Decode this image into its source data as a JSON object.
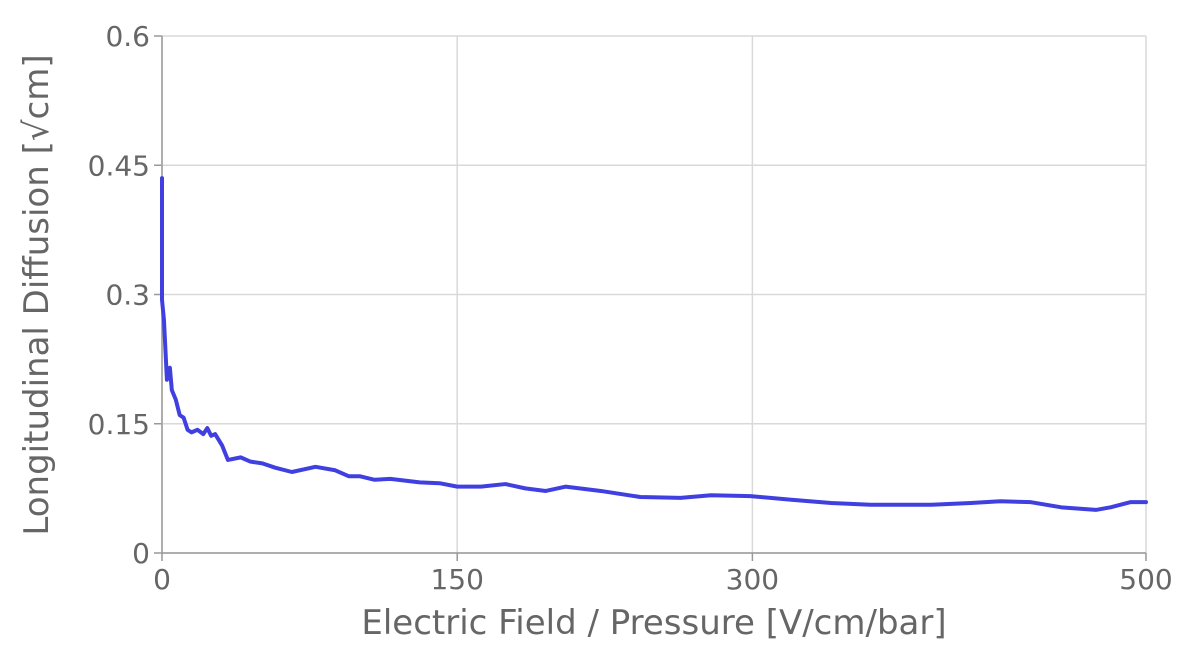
{
  "chart_data": {
    "type": "line",
    "x_label": "Electric Field / Pressure [V/cm/bar]",
    "y_label": "Longitudinal Diffusion [√cm]",
    "xlim": [
      0,
      500
    ],
    "xticks": [
      0,
      150,
      300,
      500
    ],
    "ylim": [
      0,
      0.6
    ],
    "yticks": [
      0,
      0.15,
      0.3,
      0.45,
      0.6
    ],
    "grid": true,
    "series": [
      {
        "color": "#4040e0",
        "x": [
          0,
          0,
          1,
          2.5,
          4,
          5,
          7,
          9,
          11,
          13,
          15,
          18,
          21,
          23,
          25,
          27,
          30.5,
          33.5,
          40,
          45,
          51,
          57.5,
          66,
          78,
          88,
          95,
          100.7,
          108,
          116,
          131,
          141,
          150,
          162,
          174.5,
          184.6,
          195,
          205,
          223,
          243,
          263.5,
          279,
          299,
          319,
          340,
          360,
          391,
          411,
          426,
          441.5,
          457,
          474.5,
          482,
          492,
          500
        ],
        "values": [
          0.435,
          0.294,
          0.27,
          0.201,
          0.215,
          0.189,
          0.178,
          0.16,
          0.157,
          0.143,
          0.14,
          0.143,
          0.138,
          0.145,
          0.136,
          0.138,
          0.125,
          0.108,
          0.111,
          0.106,
          0.104,
          0.099,
          0.094,
          0.1,
          0.096,
          0.089,
          0.089,
          0.085,
          0.086,
          0.082,
          0.081,
          0.077,
          0.077,
          0.08,
          0.075,
          0.072,
          0.077,
          0.072,
          0.065,
          0.064,
          0.067,
          0.066,
          0.062,
          0.058,
          0.056,
          0.056,
          0.058,
          0.06,
          0.059,
          0.053,
          0.05,
          0.053,
          0.059,
          0.059
        ]
      }
    ]
  }
}
